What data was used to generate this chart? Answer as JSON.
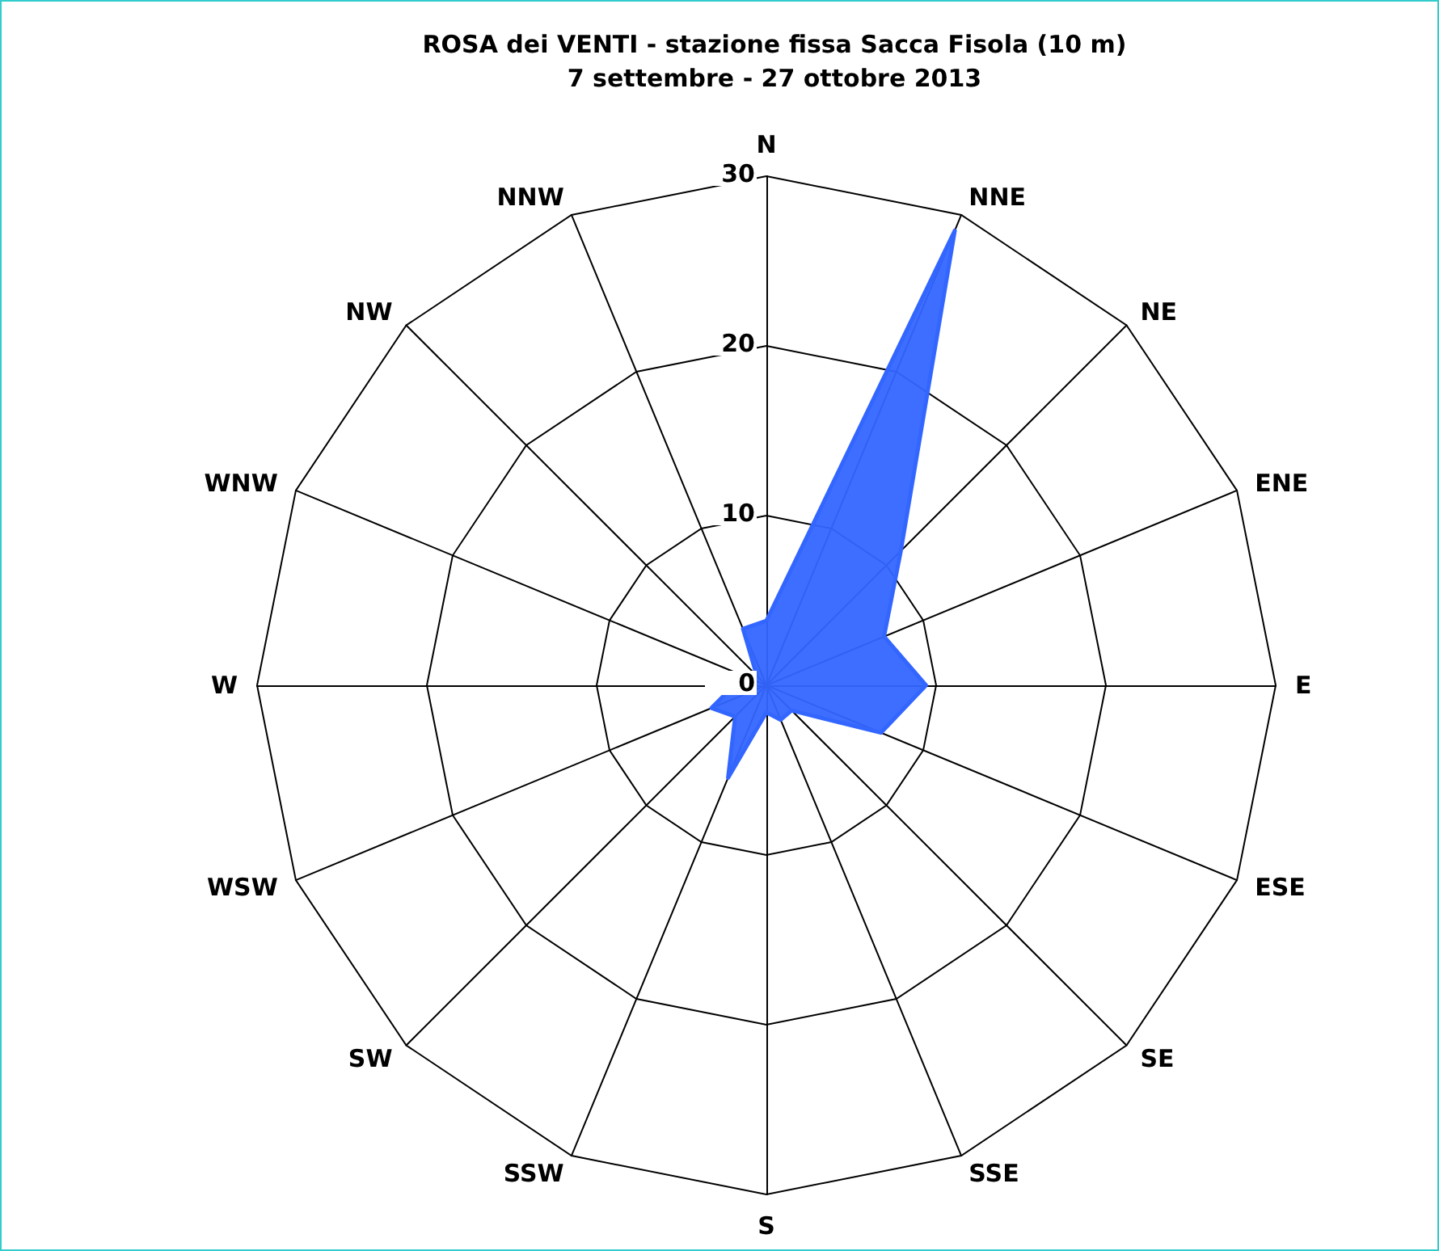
{
  "chart_data": {
    "type": "radar",
    "title": "ROSA dei VENTI - stazione fissa Sacca Fisola (10 m)",
    "subtitle": "7 settembre - 27 ottobre 2013",
    "categories": [
      "N",
      "NNE",
      "NE",
      "ENE",
      "E",
      "ESE",
      "SE",
      "SSE",
      "S",
      "SSW",
      "SW",
      "WSW",
      "W",
      "WNW",
      "NW",
      "NNW"
    ],
    "series": [
      {
        "color": "#3366ff",
        "values": [
          3.8,
          29,
          11.2,
          7.5,
          9.4,
          7.3,
          2.1,
          2.2,
          1.6,
          5.9,
          2.6,
          3.5,
          1.9,
          1,
          0.8,
          3.6
        ]
      }
    ],
    "ylim": [
      0,
      30
    ],
    "yticks": [
      0,
      10,
      20,
      30
    ],
    "marker": "none"
  }
}
